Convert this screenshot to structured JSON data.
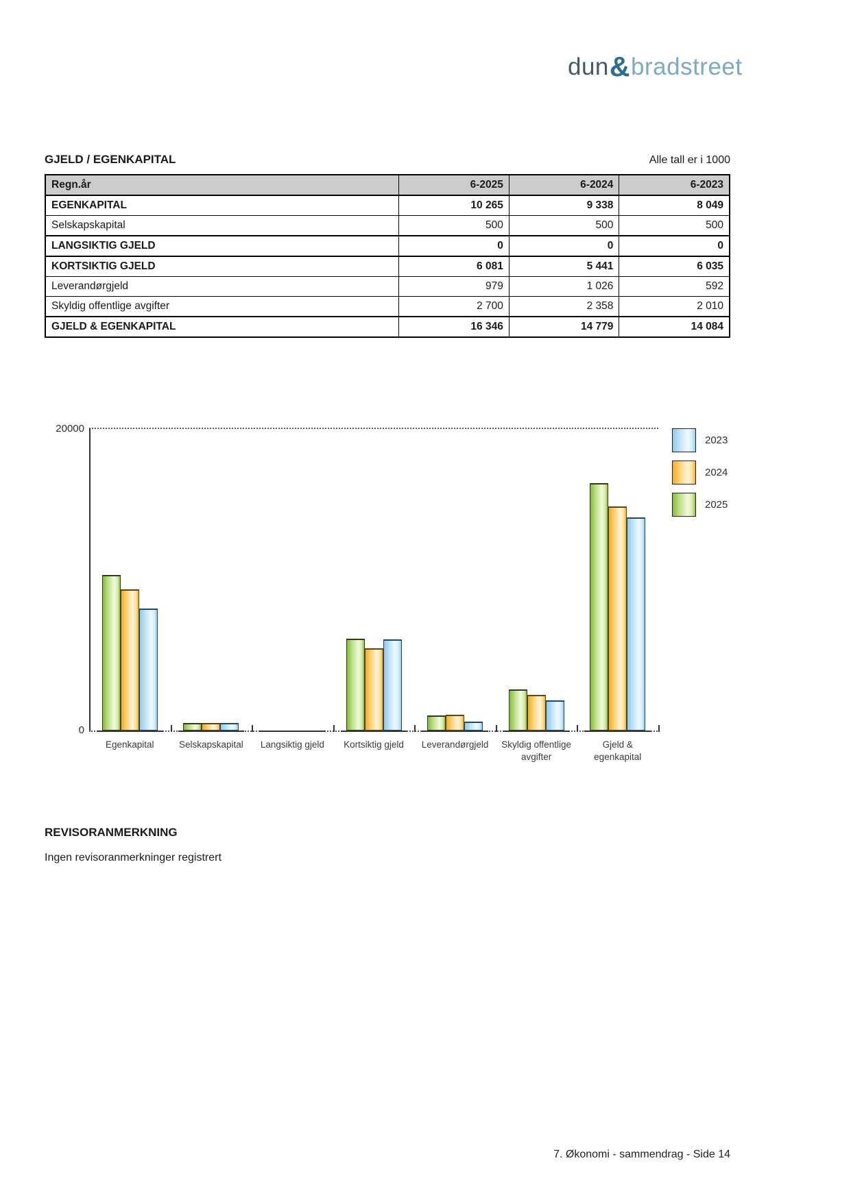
{
  "logo": {
    "word1": "dun",
    "ampersand": "&",
    "word2": "bradstreet",
    "colors": {
      "word1": "#44596b",
      "ampersand": "#2e6d94",
      "word2": "#7aaac7"
    }
  },
  "section": {
    "title": "GJELD / EGENKAPITAL",
    "unit_note": "Alle tall er i 1000"
  },
  "table": {
    "columns": [
      "Regn.år",
      "6-2025",
      "6-2024",
      "6-2023"
    ],
    "rows": [
      {
        "label": "EGENKAPITAL",
        "values": [
          "10 265",
          "9 338",
          "8 049"
        ],
        "emphasis": true
      },
      {
        "label": "Selskapskapital",
        "values": [
          "500",
          "500",
          "500"
        ],
        "emphasis": false
      },
      {
        "label": "LANGSIKTIG GJELD",
        "values": [
          "0",
          "0",
          "0"
        ],
        "emphasis": true
      },
      {
        "label": "KORTSIKTIG GJELD",
        "values": [
          "6 081",
          "5 441",
          "6 035"
        ],
        "emphasis": true
      },
      {
        "label": "Leverandørgjeld",
        "values": [
          "979",
          "1 026",
          "592"
        ],
        "emphasis": false
      },
      {
        "label": "Skyldig offentlige avgifter",
        "values": [
          "2 700",
          "2 358",
          "2 010"
        ],
        "emphasis": false
      },
      {
        "label": "GJELD & EGENKAPITAL",
        "values": [
          "16 346",
          "14 779",
          "14 084"
        ],
        "emphasis": true
      }
    ]
  },
  "chart_data": {
    "type": "bar",
    "title": "",
    "xlabel": "",
    "ylabel": "",
    "ylim": [
      0,
      20000
    ],
    "ytick_labels": {
      "top": "20000",
      "bottom": "0"
    },
    "grid": "dotted line at y=20000 and dotted baseline",
    "legend_position": "right",
    "categories": [
      "Egenkapital",
      "Selskapskapital",
      "Langsiktig gjeld",
      "Kortsiktig gjeld",
      "Leverandørgjeld",
      "Skyldig offentlige avgifter",
      "Gjeld & egenkapital"
    ],
    "category_lines": [
      [
        "Egenkapital"
      ],
      [
        "Selskapskapital"
      ],
      [
        "Langsiktig gjeld"
      ],
      [
        "Kortsiktig gjeld"
      ],
      [
        "Leverandørgjeld"
      ],
      [
        "Skyldig offentlige",
        "avgifter"
      ],
      [
        "Gjeld &",
        "egenkapital"
      ]
    ],
    "series": [
      {
        "name": "2025",
        "color_key": "green",
        "values": [
          10265,
          500,
          0,
          6081,
          979,
          2700,
          16346
        ]
      },
      {
        "name": "2024",
        "color_key": "orange",
        "values": [
          9338,
          500,
          0,
          5441,
          1026,
          2358,
          14779
        ]
      },
      {
        "name": "2023",
        "color_key": "blue",
        "values": [
          8049,
          500,
          0,
          6035,
          592,
          2010,
          14084
        ]
      }
    ],
    "legend": [
      {
        "label": "2023",
        "color_key": "blue"
      },
      {
        "label": "2024",
        "color_key": "orange"
      },
      {
        "label": "2025",
        "color_key": "green"
      }
    ],
    "colors": {
      "green": {
        "edge": "#85bc37",
        "light": "#f1f9de"
      },
      "orange": {
        "edge": "#f5ad1d",
        "light": "#fdf4dc"
      },
      "blue": {
        "edge": "#8ecaec",
        "light": "#f0fafe"
      }
    }
  },
  "remarks": {
    "heading": "REVISORANMERKNING",
    "body": "Ingen revisoranmerkninger registrert"
  },
  "footer": {
    "text": "7. Økonomi - sammendrag - Side 14"
  }
}
